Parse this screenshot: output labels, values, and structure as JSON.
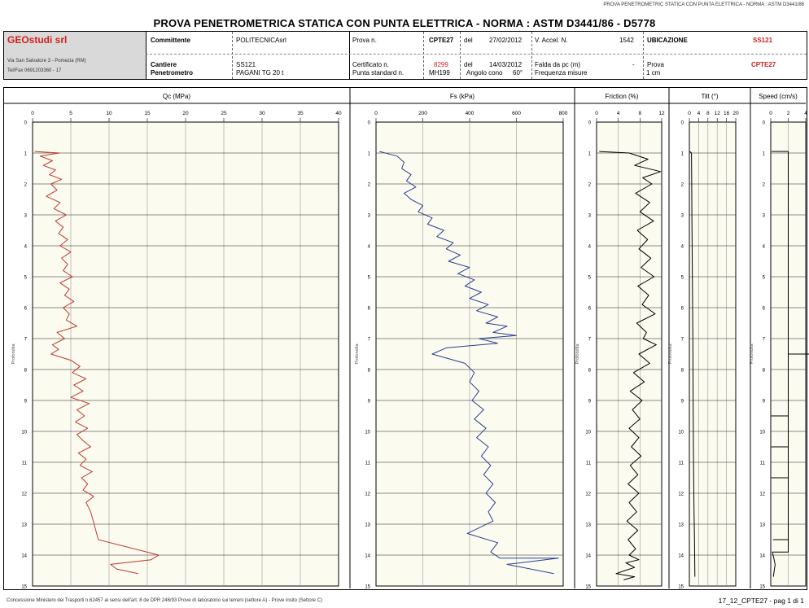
{
  "top_caption": "PROVA PENETROMETRIC STATICA CON PUNTA ELETTRICA - NORMA : ASTM D3441/86",
  "title": "PROVA PENETROMETRICA STATICA CON PUNTA ELETTRICA - NORMA : ASTM D3441/86 - D5778",
  "header": {
    "company": "GEOstudi srl",
    "address": "Via San Salvatore 3 - Pomezia (RM)",
    "phone": "Tel/Fax 0691203360 - 17",
    "committente_label": "Committente",
    "committente_value": "POLITECNICAsrl",
    "cantiere_label": "Cantiere",
    "cantiere_value": "SS121",
    "penetrometro_label": "Penetrometro",
    "penetrometro_value": "PAGANI TG 20 t",
    "prova_label": "Prova n.",
    "prova_value": "CPTE27",
    "del_label": "del",
    "prova_date": "27/02/2012",
    "certificato_label": "Certificato n.",
    "certificato_value": "8299",
    "certificato_date": "14/03/2012",
    "punta_label": "Punta standard n.",
    "punta_value": "MH199",
    "angolo_label": "Angolo cono",
    "angolo_value": "60°",
    "vaccel_label": "V. Accel. N.",
    "vaccel_value": "1542",
    "falda_label": "Falda da pc (m)",
    "falda_value": "-",
    "frequenza_label": "Frequenza misure",
    "frequenza_value": "1 cm",
    "ubicazione_label": "UBICAZIONE",
    "ubicazione_value": "SS121",
    "prova2_label": "Prova",
    "prova2_value": "CPTE27"
  },
  "footer": {
    "left": "Concessione Ministero dei Trasporti n.62457 ai sensi dell'art. 8 de DPR 246/93 Prove di laboratorio sui terreni (settore A) - Prove insito (Settore C)",
    "right": "17_12_CPTE27 - pag 1 di 1"
  },
  "chart_data": [
    {
      "type": "line",
      "title": "Qc (MPa)",
      "ylabel": "Profondita",
      "xlim": [
        0,
        40
      ],
      "xticks": [
        0,
        5,
        10,
        15,
        20,
        25,
        30,
        35,
        40
      ],
      "ylim": [
        0,
        15
      ],
      "yticks": [
        0,
        1,
        2,
        3,
        4,
        5,
        6,
        7,
        8,
        9,
        10,
        11,
        12,
        13,
        14,
        15
      ],
      "color": "#c0392b",
      "series": [
        {
          "x": [
            0.3,
            3.5,
            1.0,
            2.6,
            1.4,
            3.0,
            2.2,
            3.8,
            2.4,
            3.2,
            1.8,
            3.6,
            2.8,
            4.4,
            3.0,
            4.0,
            3.4,
            4.6,
            3.6,
            5.0,
            3.8,
            4.6,
            4.0,
            5.2,
            3.6,
            4.8,
            4.2,
            5.4,
            4.0,
            4.8,
            4.4,
            5.8,
            3.2,
            4.2,
            2.6,
            3.4,
            2.4,
            5.0,
            6.2,
            5.2,
            7.0,
            5.4,
            6.6,
            5.0,
            7.4,
            5.8,
            6.8,
            5.6,
            7.2,
            5.8,
            6.6,
            7.6,
            6.0,
            7.0,
            6.2,
            7.8,
            6.4,
            7.2,
            6.6,
            8.0,
            7.0,
            7.6,
            8.6,
            16.5,
            15.5,
            10.2,
            11.0,
            13.8
          ],
          "y": [
            0.95,
            1.0,
            1.1,
            1.25,
            1.4,
            1.55,
            1.7,
            1.85,
            2.0,
            2.2,
            2.4,
            2.6,
            2.8,
            3.0,
            3.2,
            3.4,
            3.6,
            3.8,
            4.0,
            4.2,
            4.4,
            4.6,
            4.8,
            5.0,
            5.2,
            5.4,
            5.6,
            5.8,
            6.0,
            6.2,
            6.4,
            6.6,
            6.8,
            7.0,
            7.2,
            7.35,
            7.5,
            7.7,
            7.9,
            8.1,
            8.3,
            8.5,
            8.7,
            8.9,
            9.1,
            9.3,
            9.5,
            9.7,
            9.9,
            10.1,
            10.3,
            10.5,
            10.7,
            10.9,
            11.1,
            11.3,
            11.5,
            11.7,
            11.9,
            12.1,
            12.3,
            12.6,
            13.5,
            14.0,
            14.15,
            14.3,
            14.45,
            14.6
          ]
        }
      ]
    },
    {
      "type": "line",
      "title": "Fs (kPa)",
      "ylabel": "Profondita",
      "xlim": [
        0,
        800
      ],
      "xticks": [
        0,
        200,
        400,
        600,
        800
      ],
      "ylim": [
        0,
        15
      ],
      "yticks": [
        0,
        1,
        2,
        3,
        4,
        5,
        6,
        7,
        8,
        9,
        10,
        11,
        12,
        13,
        14,
        15
      ],
      "color": "#2c3e8f",
      "series": [
        {
          "x": [
            15,
            90,
            120,
            110,
            150,
            130,
            170,
            120,
            150,
            200,
            180,
            240,
            220,
            290,
            260,
            330,
            300,
            360,
            310,
            400,
            350,
            420,
            380,
            450,
            400,
            480,
            430,
            520,
            470,
            560,
            500,
            600,
            440,
            520,
            300,
            240,
            380,
            420,
            400,
            440,
            410,
            460,
            420,
            470,
            430,
            480,
            450,
            490,
            460,
            500,
            470,
            510,
            480,
            500,
            390,
            520,
            490,
            530,
            780,
            560,
            760
          ],
          "y": [
            0.95,
            1.1,
            1.3,
            1.5,
            1.7,
            1.9,
            2.1,
            2.3,
            2.5,
            2.7,
            2.9,
            3.1,
            3.3,
            3.5,
            3.7,
            3.9,
            4.1,
            4.3,
            4.5,
            4.7,
            4.9,
            5.1,
            5.3,
            5.5,
            5.7,
            5.9,
            6.1,
            6.3,
            6.5,
            6.6,
            6.8,
            6.9,
            7.0,
            7.15,
            7.3,
            7.5,
            7.8,
            8.1,
            8.4,
            8.7,
            9.0,
            9.3,
            9.6,
            9.9,
            10.2,
            10.5,
            10.8,
            11.1,
            11.4,
            11.7,
            12.0,
            12.3,
            12.6,
            12.9,
            13.3,
            13.6,
            13.9,
            14.1,
            14.1,
            14.3,
            14.6
          ]
        }
      ]
    },
    {
      "type": "line",
      "title": "Friction (%)",
      "ylabel": "Profondita",
      "xlim": [
        0,
        12
      ],
      "xticks": [
        0,
        4,
        8,
        12
      ],
      "ylim": [
        0,
        15
      ],
      "yticks": [
        0,
        1,
        2,
        3,
        4,
        5,
        6,
        7,
        8,
        9,
        10,
        11,
        12,
        13,
        14,
        15
      ],
      "color": "#000000",
      "series": [
        {
          "x": [
            0.5,
            6.0,
            9.5,
            7.0,
            11.8,
            8.5,
            10.2,
            7.2,
            9.8,
            8.0,
            10.5,
            7.5,
            9.4,
            7.8,
            10.0,
            8.2,
            10.6,
            7.6,
            9.6,
            8.4,
            10.8,
            7.4,
            9.2,
            8.6,
            11.0,
            7.8,
            9.8,
            6.8,
            8.8,
            6.2,
            8.4,
            6.6,
            8.0,
            6.0,
            7.8,
            6.4,
            8.2,
            6.2,
            7.6,
            5.8,
            7.8,
            6.0,
            7.4,
            5.6,
            7.6,
            5.8,
            7.2,
            6.0,
            7.8,
            5.4,
            7.0,
            5.2,
            3.6,
            7.0,
            5.0
          ],
          "y": [
            0.95,
            1.0,
            1.2,
            1.4,
            1.6,
            1.8,
            2.0,
            2.3,
            2.6,
            2.9,
            3.2,
            3.5,
            3.8,
            4.1,
            4.4,
            4.7,
            5.0,
            5.3,
            5.6,
            5.9,
            6.2,
            6.5,
            6.8,
            7.0,
            7.2,
            7.5,
            7.8,
            8.1,
            8.4,
            8.7,
            9.0,
            9.3,
            9.6,
            9.9,
            10.2,
            10.5,
            10.8,
            11.1,
            11.4,
            11.7,
            12.0,
            12.3,
            12.6,
            12.9,
            13.2,
            13.5,
            13.8,
            14.0,
            14.15,
            14.25,
            14.4,
            14.5,
            14.6,
            14.7,
            14.8
          ]
        }
      ]
    },
    {
      "type": "line",
      "title": "Tilt (°)",
      "ylabel": "Profondita",
      "xlim": [
        0,
        20
      ],
      "xticks": [
        0,
        4,
        8,
        12,
        16,
        20
      ],
      "ylim": [
        0,
        15
      ],
      "yticks": [
        0,
        1,
        2,
        3,
        4,
        5,
        6,
        7,
        8,
        9,
        10,
        11,
        12,
        13,
        14,
        15
      ],
      "color": "#000000",
      "series": [
        {
          "x": [
            0.2,
            0.9,
            1.0,
            1.1,
            1.2,
            1.3,
            1.5,
            1.6,
            1.8,
            2.0,
            2.2,
            2.4
          ],
          "y": [
            0.95,
            1.0,
            2.0,
            3.0,
            4.0,
            5.0,
            7.0,
            9.0,
            11.0,
            12.5,
            13.5,
            14.7
          ]
        }
      ]
    },
    {
      "type": "line",
      "title": "Speed (cm/s)",
      "ylabel": "Profondita",
      "xlim": [
        0,
        4
      ],
      "xticks": [
        0,
        2,
        4
      ],
      "ylim": [
        0,
        15
      ],
      "yticks": [
        0,
        1,
        2,
        3,
        4,
        5,
        6,
        7,
        8,
        9,
        10,
        11,
        12,
        13,
        14,
        15
      ],
      "color": "#000000",
      "series": [
        {
          "x": [
            0.1,
            2.0,
            2.0,
            4.5,
            2.0,
            2.0,
            0.1,
            2.0,
            2.0,
            0.1,
            2.0,
            2.0,
            0.1,
            2.0,
            2.0,
            0.3,
            2.0,
            2.0,
            0.2,
            0.5,
            0.3
          ],
          "y": [
            0.95,
            0.95,
            7.5,
            7.5,
            7.5,
            9.5,
            9.5,
            9.5,
            10.5,
            10.5,
            10.5,
            11.5,
            11.5,
            11.5,
            13.5,
            13.5,
            13.5,
            13.9,
            13.9,
            14.3,
            14.7
          ]
        }
      ]
    }
  ]
}
